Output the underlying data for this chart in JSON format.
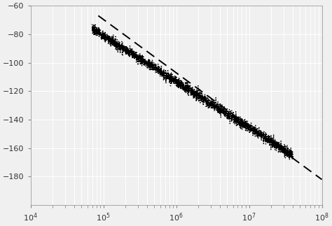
{
  "xlim": [
    10000.0,
    100000000.0
  ],
  "ylim": [
    -200,
    -60
  ],
  "yticks": [
    -60,
    -80,
    -100,
    -120,
    -140,
    -160,
    -180
  ],
  "background_color": "#f0f0f0",
  "grid_color": "#ffffff",
  "line1": {
    "x_start": 85000.0,
    "y_start": -67,
    "x_end": 100000000.0,
    "y_end": -182,
    "color": "#000000",
    "linewidth": 1.4,
    "dash_on": 7,
    "dash_off": 4
  },
  "line2": {
    "x_start": 70000.0,
    "y_start": -76,
    "x_end": 40000000.0,
    "y_end": -165,
    "color": "#000000",
    "linewidth": 1.0,
    "dot_size": 1.5,
    "noise_std": 1.8
  }
}
